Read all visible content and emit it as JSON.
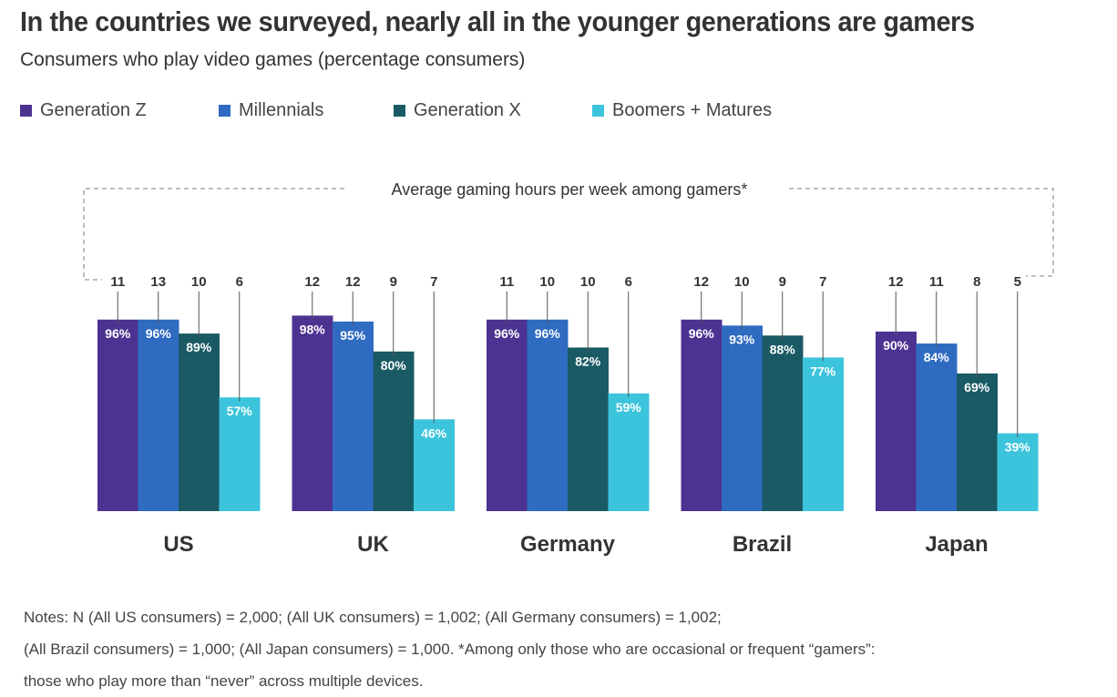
{
  "title": "In the countries we surveyed, nearly all in the younger generations are gamers",
  "subtitle": "Consumers who play video games (percentage consumers)",
  "legend": [
    {
      "label": "Generation Z",
      "color": "#4d3391"
    },
    {
      "label": "Millennials",
      "color": "#2f6bc0"
    },
    {
      "label": "Generation X",
      "color": "#1a5a64"
    },
    {
      "label": "Boomers + Matures",
      "color": "#3cc4dc"
    }
  ],
  "chart_data": {
    "type": "bar",
    "title": "In the countries we surveyed, nearly all in the younger generations are gamers",
    "subtitle": "Consumers who play video games (percentage consumers)",
    "categories": [
      "US",
      "UK",
      "Germany",
      "Brazil",
      "Japan"
    ],
    "unit": "%",
    "ylim": [
      0,
      100
    ],
    "grid": false,
    "legend_position": "top-left",
    "series": [
      {
        "name": "Generation Z",
        "color": "#4d3391",
        "values": [
          96,
          98,
          96,
          96,
          90
        ],
        "hours": [
          11,
          12,
          11,
          12,
          12
        ]
      },
      {
        "name": "Millennials",
        "color": "#2f6bc0",
        "values": [
          96,
          95,
          96,
          93,
          84
        ],
        "hours": [
          13,
          12,
          10,
          10,
          11
        ]
      },
      {
        "name": "Generation X",
        "color": "#1a5a64",
        "values": [
          89,
          80,
          82,
          88,
          69
        ],
        "hours": [
          10,
          9,
          10,
          9,
          8
        ]
      },
      {
        "name": "Boomers + Matures",
        "color": "#3cc4dc",
        "values": [
          57,
          46,
          59,
          77,
          39
        ],
        "hours": [
          6,
          7,
          6,
          7,
          5
        ]
      }
    ],
    "annotation": "Average gaming hours per week among gamers*"
  },
  "notes": [
    "Notes: N (All US consumers) = 2,000; (All UK consumers) = 1,002; (All Germany consumers) = 1,002;",
    "(All Brazil consumers) = 1,000; (All Japan consumers) = 1,000. *Among only those who are occasional or frequent “gamers”:",
    "those who play more than “never” across multiple devices."
  ]
}
